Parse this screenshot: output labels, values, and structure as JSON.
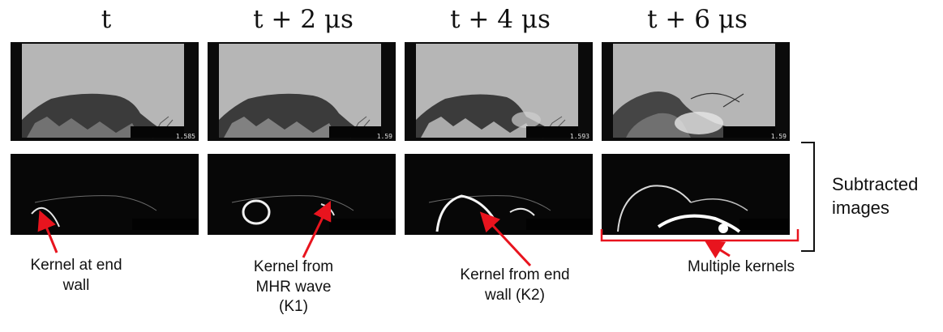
{
  "columns": [
    {
      "title": "t",
      "scale": "1.585"
    },
    {
      "title": "t + 2 μs",
      "scale": "1.59"
    },
    {
      "title": "t + 4 μs",
      "scale": "1.593"
    },
    {
      "title": "t + 6 μs",
      "scale": "1.59"
    }
  ],
  "labels": {
    "k0": "Kernel at end\nwall",
    "k1": "Kernel from\nMHR wave\n(K1)",
    "k2": "Kernel from end\nwall (K2)",
    "multi": "Multiple kernels"
  },
  "side_label": "Subtracted\nimages",
  "colors": {
    "arrow": "#e8141e",
    "bracket": "#e8141e"
  }
}
